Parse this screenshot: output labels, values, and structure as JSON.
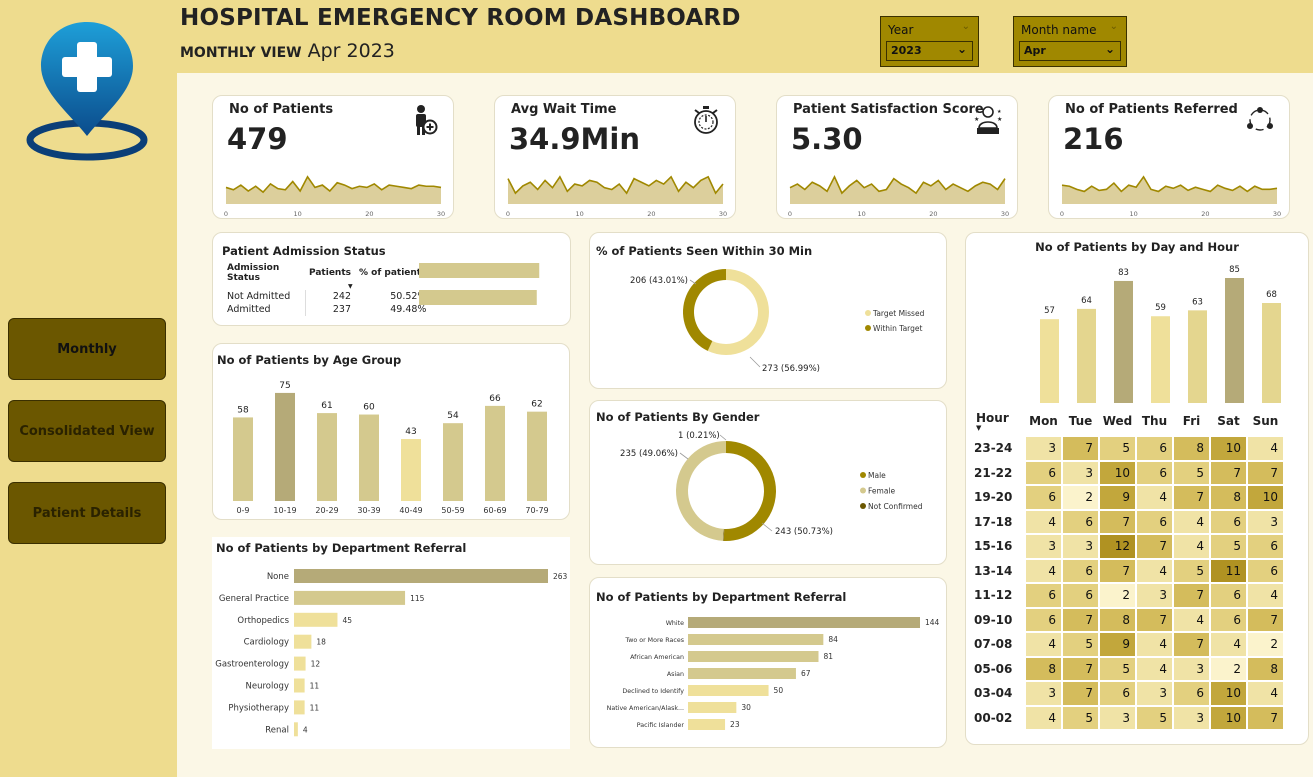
{
  "header": {
    "title": "HOSPITAL EMERGENCY ROOM DASHBOARD",
    "subtitle": "MONTHLY VIEW",
    "period": "Apr 2023"
  },
  "filters": {
    "year": {
      "label": "Year",
      "value": "2023"
    },
    "month": {
      "label": "Month name",
      "value": "Apr"
    }
  },
  "nav": {
    "monthly": "Monthly",
    "consolidated": "Consolidated View",
    "patient_details": "Patient Details"
  },
  "kpis": [
    {
      "title": "No of Patients",
      "value": "479",
      "icon": "patient-add-icon",
      "spark": [
        14,
        12,
        16,
        11,
        15,
        10,
        17,
        13,
        12,
        19,
        11,
        23,
        14,
        16,
        11,
        18,
        16,
        13,
        15,
        14,
        17,
        12,
        16,
        15,
        14,
        13,
        16,
        15,
        15,
        14
      ],
      "ticks": [
        "0",
        "10",
        "20",
        "30"
      ]
    },
    {
      "title": "Avg Wait Time",
      "value": "34.9Min",
      "icon": "stopwatch-icon",
      "spark": [
        28,
        12,
        20,
        24,
        16,
        26,
        18,
        30,
        14,
        22,
        20,
        26,
        24,
        18,
        16,
        22,
        12,
        28,
        24,
        20,
        26,
        22,
        30,
        14,
        24,
        18,
        26,
        30,
        12,
        22
      ],
      "ticks": [
        "0",
        "10",
        "20",
        "30"
      ]
    },
    {
      "title": "Patient Satisfaction Score",
      "value": "5.30",
      "icon": "satisfaction-icon",
      "spark": [
        18,
        22,
        16,
        24,
        20,
        14,
        30,
        12,
        20,
        26,
        18,
        22,
        14,
        16,
        28,
        22,
        18,
        12,
        24,
        20,
        26,
        16,
        22,
        18,
        14,
        20,
        24,
        22,
        16,
        28
      ],
      "ticks": [
        "0",
        "10",
        "20",
        "30"
      ]
    },
    {
      "title": "No of Patients Referred",
      "value": "216",
      "icon": "referral-network-icon",
      "spark": [
        18,
        17,
        14,
        12,
        17,
        13,
        14,
        20,
        12,
        18,
        16,
        26,
        14,
        12,
        17,
        15,
        18,
        13,
        16,
        14,
        12,
        18,
        15,
        13,
        17,
        12,
        17,
        14,
        14,
        15
      ],
      "ticks": [
        "0",
        "10",
        "20",
        "30"
      ]
    }
  ],
  "admission": {
    "title": "Patient Admission Status",
    "headers": [
      "Admission Status",
      "Patients",
      "% of patients"
    ],
    "rows": [
      {
        "status": "Not Admitted",
        "patients": "242",
        "pct": "50.52%",
        "frac": 0.5052
      },
      {
        "status": "Admitted",
        "patients": "237",
        "pct": "49.48%",
        "frac": 0.4948
      }
    ]
  },
  "age": {
    "title": "No of Patients by Age Group"
  },
  "wait30": {
    "title": "% of Patients Seen Within 30 Min",
    "legend": [
      "Target Missed",
      "Within Target"
    ],
    "labels": [
      "206 (43.01%)",
      "273 (56.99%)"
    ]
  },
  "gender": {
    "title": "No of Patients By Gender",
    "legend": [
      "Male",
      "Female",
      "Not Confirmed"
    ],
    "labels": [
      "1 (0.21%)",
      "235 (49.06%)",
      "243 (50.73%)"
    ]
  },
  "dept": {
    "title": "No of Patients by Department Referral"
  },
  "race": {
    "title": "No of Patients by Department Referral"
  },
  "dayhour": {
    "title": "No of Patients by Day and Hour",
    "hour_label": "Hour",
    "days": [
      "Mon",
      "Tue",
      "Wed",
      "Thu",
      "Fri",
      "Sat",
      "Sun"
    ],
    "hours": [
      "23-24",
      "21-22",
      "19-20",
      "17-18",
      "15-16",
      "13-14",
      "11-12",
      "09-10",
      "07-08",
      "05-06",
      "03-04",
      "00-02"
    ],
    "matrix": [
      [
        3,
        7,
        5,
        6,
        8,
        10,
        4
      ],
      [
        6,
        3,
        10,
        6,
        5,
        7,
        7
      ],
      [
        6,
        2,
        9,
        4,
        7,
        8,
        10
      ],
      [
        4,
        6,
        7,
        6,
        4,
        6,
        3
      ],
      [
        3,
        3,
        12,
        7,
        4,
        5,
        6
      ],
      [
        4,
        6,
        7,
        4,
        5,
        11,
        6
      ],
      [
        6,
        6,
        2,
        3,
        7,
        6,
        4
      ],
      [
        6,
        7,
        8,
        7,
        4,
        6,
        7
      ],
      [
        4,
        5,
        9,
        4,
        7,
        4,
        2
      ],
      [
        8,
        7,
        5,
        4,
        3,
        2,
        8
      ],
      [
        3,
        7,
        6,
        3,
        6,
        10,
        4
      ],
      [
        4,
        5,
        3,
        5,
        3,
        10,
        7
      ]
    ]
  },
  "colors": {
    "dark_gold": "#A08800",
    "bar_default": "#D4C98E",
    "bar_highlight": "#B5AA78",
    "bar_light": "#EFE09A",
    "donut_light": "#EFE09A",
    "donut_dark": "#A08800"
  },
  "chart_data": [
    {
      "type": "bar",
      "title": "No of Patients by Age Group",
      "categories": [
        "0-9",
        "10-19",
        "20-29",
        "30-39",
        "40-49",
        "50-59",
        "60-69",
        "70-79"
      ],
      "values": [
        58,
        75,
        61,
        60,
        43,
        54,
        66,
        62
      ]
    },
    {
      "type": "bar",
      "title": "No of Patients by Department Referral",
      "orientation": "horizontal",
      "categories": [
        "None",
        "General Practice",
        "Orthopedics",
        "Cardiology",
        "Gastroenterology",
        "Neurology",
        "Physiotherapy",
        "Renal"
      ],
      "values": [
        263,
        115,
        45,
        18,
        12,
        11,
        11,
        4
      ]
    },
    {
      "type": "bar",
      "title": "No of Patients by Department Referral",
      "orientation": "horizontal",
      "categories": [
        "White",
        "Two or More Races",
        "African American",
        "Asian",
        "Declined to Identify",
        "Native American/Alask...",
        "Pacific Islander"
      ],
      "values": [
        144,
        84,
        81,
        67,
        50,
        30,
        23
      ]
    },
    {
      "type": "pie",
      "title": "% of Patients Seen Within 30 Min",
      "categories": [
        "Target Missed",
        "Within Target"
      ],
      "values": [
        206,
        273
      ]
    },
    {
      "type": "pie",
      "title": "No of Patients By Gender",
      "categories": [
        "Male",
        "Female",
        "Not Confirmed"
      ],
      "values": [
        243,
        235,
        1
      ]
    },
    {
      "type": "bar",
      "title": "No of Patients by Day and Hour",
      "categories": [
        "Mon",
        "Tue",
        "Wed",
        "Thu",
        "Fri",
        "Sat",
        "Sun"
      ],
      "values": [
        57,
        64,
        83,
        59,
        63,
        85,
        68
      ]
    },
    {
      "type": "heatmap",
      "title": "No of Patients by Day and Hour"
    }
  ]
}
